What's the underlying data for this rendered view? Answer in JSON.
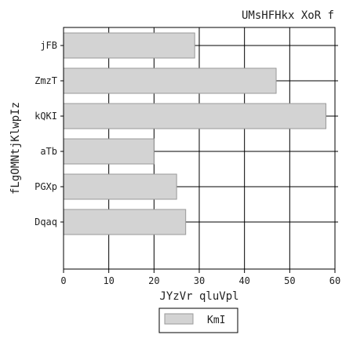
{
  "chart_data": {
    "type": "bar",
    "orientation": "horizontal",
    "title": "UMsHFHkx XoR f",
    "xlabel": "JYzVr qluVpl",
    "ylabel": "fLgOMNtjKlwpIz",
    "categories": [
      "jFB",
      "ZmzT",
      "kQKI",
      "aTb",
      "PGXp",
      "Dqaq"
    ],
    "series": [
      {
        "name": "KmI",
        "values": [
          29,
          47,
          58,
          20,
          25,
          27
        ]
      }
    ],
    "xlim": [
      0,
      60
    ],
    "xticks": [
      "0",
      "10",
      "20",
      "30",
      "40",
      "50",
      "60"
    ],
    "grid": true,
    "legend_position": "bottom-center",
    "colors": {
      "bar_fill": "#d3d3d3",
      "bar_stroke": "#999999",
      "axis": "#000000",
      "grid": "#000000"
    }
  }
}
